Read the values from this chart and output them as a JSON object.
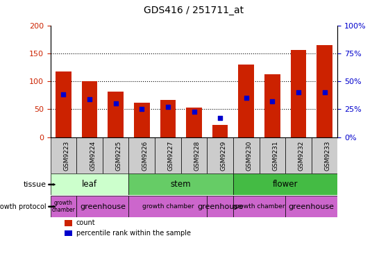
{
  "title": "GDS416 / 251711_at",
  "samples": [
    "GSM9223",
    "GSM9224",
    "GSM9225",
    "GSM9226",
    "GSM9227",
    "GSM9228",
    "GSM9229",
    "GSM9230",
    "GSM9231",
    "GSM9232",
    "GSM9233"
  ],
  "counts": [
    117,
    100,
    82,
    62,
    67,
    53,
    22,
    130,
    112,
    156,
    165
  ],
  "percentiles": [
    38,
    34,
    30,
    25,
    27,
    23,
    17,
    35,
    32,
    40,
    40
  ],
  "bar_color": "#cc2200",
  "dot_color": "#0000cc",
  "left_ylim": [
    0,
    200
  ],
  "left_yticks": [
    0,
    50,
    100,
    150,
    200
  ],
  "right_ylim": [
    0,
    100
  ],
  "right_yticks": [
    0,
    25,
    50,
    75,
    100
  ],
  "left_ylabel_color": "#cc2200",
  "right_ylabel_color": "#0000cc",
  "tissue_groups": [
    {
      "label": "leaf",
      "start": 0,
      "end": 2,
      "color": "#ccffcc"
    },
    {
      "label": "stem",
      "start": 3,
      "end": 6,
      "color": "#66cc66"
    },
    {
      "label": "flower",
      "start": 7,
      "end": 10,
      "color": "#44bb44"
    }
  ],
  "protocol_groups": [
    {
      "label": "growth\nchamber",
      "start": 0,
      "end": 0,
      "fontsize": 5.5
    },
    {
      "label": "greenhouse",
      "start": 1,
      "end": 2,
      "fontsize": 8
    },
    {
      "label": "growth chamber",
      "start": 3,
      "end": 5,
      "fontsize": 6.5
    },
    {
      "label": "greenhouse",
      "start": 6,
      "end": 6,
      "fontsize": 8
    },
    {
      "label": "growth chamber",
      "start": 7,
      "end": 8,
      "fontsize": 6.5
    },
    {
      "label": "greenhouse",
      "start": 9,
      "end": 10,
      "fontsize": 8
    }
  ],
  "tissue_label": "tissue",
  "protocol_label": "growth protocol",
  "legend_count_label": "count",
  "legend_pct_label": "percentile rank within the sample",
  "bg_color": "#ffffff",
  "xticklabel_bg": "#cccccc",
  "prot_color": "#cc66cc"
}
